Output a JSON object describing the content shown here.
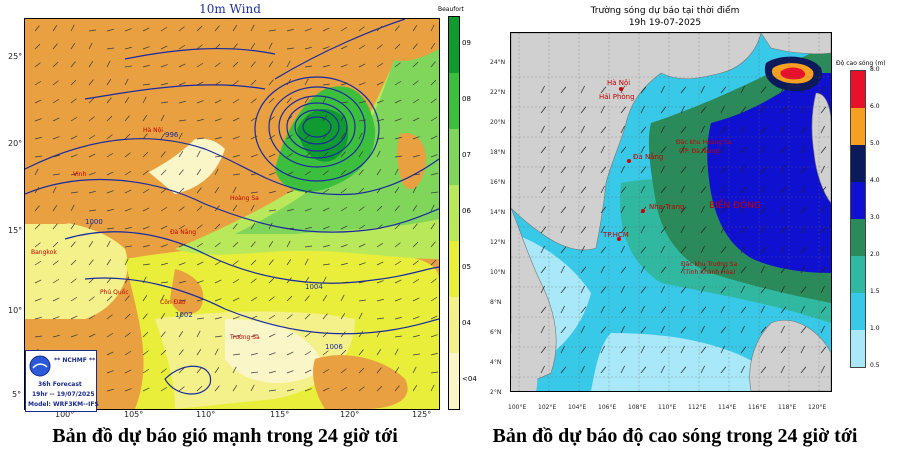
{
  "wind_map": {
    "title": "10m Wind",
    "legend_title": "Beaufort",
    "legend_labels": [
      "09",
      "08",
      "07",
      "06",
      "05",
      "04",
      "<04"
    ],
    "legend_colors": [
      "#0f9b2f",
      "#3cbf3c",
      "#7fd65a",
      "#b9e85a",
      "#e8ee3a",
      "#f4f08a",
      "#fbf6c8"
    ],
    "lat_labels": [
      "25°",
      "20°",
      "15°",
      "10°",
      "5°"
    ],
    "lon_labels": [
      "100°",
      "105°",
      "110°",
      "115°",
      "120°",
      "125°"
    ],
    "isobars": [
      "1000",
      "1004",
      "1002",
      "996",
      "1006"
    ],
    "cities": [
      "Hà Nội",
      "Vinh",
      "Đà Nẵng",
      "Hoàng Sa",
      "Trường Sa",
      "Bangkok",
      "Phú Quốc",
      "Côn Đảo"
    ],
    "info": {
      "agency": "** NCHMF **",
      "forecast": "36h Forecast",
      "valid": "19hr -- 19/07/2025",
      "model": "Model: WRF3KM--IFS"
    },
    "caption": "Bản đồ dự báo gió mạnh trong 24 giờ tới"
  },
  "wave_map": {
    "title_line1": "Trường sóng dự báo tại thời điểm",
    "title_line2": "19h 19-07-2025",
    "legend_title": "Độ cao sóng (m)",
    "legend_ticks": [
      "8.0",
      "6.0",
      "5.0",
      "4.0",
      "3.0",
      "2.0",
      "1.5",
      "1.0",
      "0.5"
    ],
    "legend_colors": [
      "#e8102a",
      "#f5a020",
      "#0a1a5a",
      "#1010d0",
      "#2a8a5a",
      "#30b8a0",
      "#38c8e8",
      "#a8e8f8"
    ],
    "lat_labels": [
      "24°N",
      "22°N",
      "20°N",
      "18°N",
      "16°N",
      "14°N",
      "12°N",
      "10°N",
      "8°N",
      "6°N",
      "4°N",
      "2°N"
    ],
    "lon_labels": [
      "100°E",
      "102°E",
      "104°E",
      "106°E",
      "108°E",
      "110°E",
      "112°E",
      "114°E",
      "116°E",
      "118°E",
      "120°E"
    ],
    "labels": {
      "hanoi": "Hà Nội",
      "haiphong": "Hải Phòng",
      "danang": "Đà Nẵng",
      "nhatrang": "Nha Trang",
      "tphcm": "TP.HCM",
      "hoangsa": "Đặc khu Hoàng Sa",
      "hoangsa2": "(TP. Đà Nẵng)",
      "biendong": "BIỂN ĐÔNG",
      "truongsa": "Đặc khu Trường Sa",
      "truongsa2": "(Tỉnh Khánh Hòa)"
    },
    "caption": "Bản đồ dự báo độ cao sóng trong 24 giờ tới"
  }
}
